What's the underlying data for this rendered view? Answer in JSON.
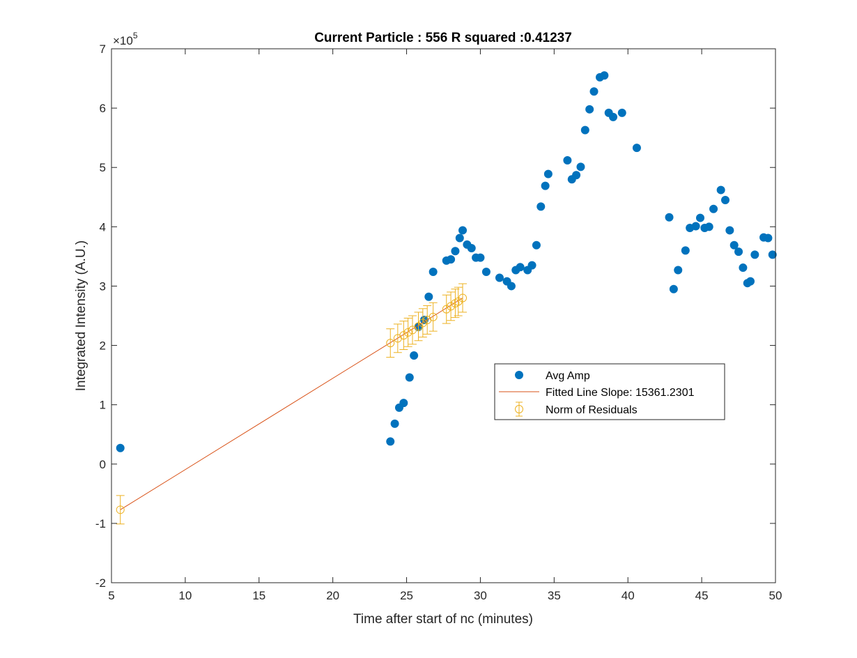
{
  "chart_data": {
    "type": "scatter",
    "title": "Current Particle : 556   R squared :0.41237",
    "xlabel": "Time after start of nc (minutes)",
    "ylabel": "Integrated Intensity (A.U.)",
    "y_exponent_label": "×10",
    "y_exponent_power": "5",
    "xlim": [
      5,
      50
    ],
    "ylim": [
      -2,
      7
    ],
    "xticks": [
      5,
      10,
      15,
      20,
      25,
      30,
      35,
      40,
      45,
      50
    ],
    "yticks": [
      -2,
      -1,
      0,
      1,
      2,
      3,
      4,
      5,
      6,
      7
    ],
    "grid": false,
    "legend_position": "center-right",
    "colors": {
      "avg_amp": "#0072BD",
      "fit": "#D95319",
      "residuals": "#EDB120",
      "axis": "#262626"
    },
    "series": [
      {
        "name": "Avg Amp",
        "kind": "filled-markers",
        "x": [
          5.6,
          23.9,
          24.2,
          24.5,
          24.8,
          25.2,
          25.5,
          25.8,
          26.2,
          26.5,
          26.8,
          27.7,
          28.0,
          28.3,
          28.6,
          28.8,
          29.1,
          29.4,
          29.7,
          30.0,
          30.4,
          31.3,
          31.8,
          32.1,
          32.4,
          32.7,
          33.2,
          33.5,
          33.8,
          34.1,
          34.4,
          34.6,
          35.9,
          36.2,
          36.5,
          36.8,
          37.1,
          37.4,
          37.7,
          38.1,
          38.4,
          38.7,
          39.0,
          39.6,
          40.6,
          42.8,
          43.1,
          43.4,
          43.9,
          44.2,
          44.6,
          44.9,
          45.2,
          45.5,
          45.8,
          46.3,
          46.6,
          46.9,
          47.2,
          47.5,
          47.8,
          48.1,
          48.3,
          48.6,
          49.2,
          49.5,
          49.8
        ],
        "y": [
          0.27,
          0.38,
          0.68,
          0.95,
          1.03,
          1.46,
          1.83,
          2.31,
          2.43,
          2.82,
          3.24,
          3.43,
          3.45,
          3.59,
          3.81,
          3.94,
          3.7,
          3.64,
          3.48,
          3.48,
          3.24,
          3.14,
          3.08,
          3.0,
          3.27,
          3.32,
          3.27,
          3.35,
          3.69,
          4.34,
          4.69,
          4.89,
          5.12,
          4.8,
          4.87,
          5.01,
          5.63,
          5.98,
          6.28,
          6.52,
          6.55,
          5.92,
          5.85,
          5.92,
          5.33,
          4.16,
          2.95,
          3.27,
          3.6,
          3.98,
          4.01,
          4.15,
          3.98,
          4.0,
          4.3,
          4.62,
          4.45,
          3.94,
          3.69,
          3.58,
          3.31,
          3.05,
          3.08,
          3.53,
          3.82,
          3.81,
          3.53
        ]
      },
      {
        "name": "Fitted Line Slope: 15361.2301",
        "kind": "line",
        "x": [
          5.6,
          28.8
        ],
        "y": [
          -0.77,
          2.8
        ]
      },
      {
        "name": "Norm of Residuals",
        "kind": "errorbar",
        "x": [
          5.6,
          23.9,
          24.4,
          24.8,
          25.1,
          25.4,
          25.8,
          26.1,
          26.4,
          26.8,
          27.7,
          28.0,
          28.3,
          28.5,
          28.8
        ],
        "y": [
          -0.77,
          2.04,
          2.12,
          2.17,
          2.22,
          2.26,
          2.32,
          2.38,
          2.43,
          2.48,
          2.61,
          2.66,
          2.71,
          2.74,
          2.8
        ],
        "err": 0.24
      }
    ]
  }
}
